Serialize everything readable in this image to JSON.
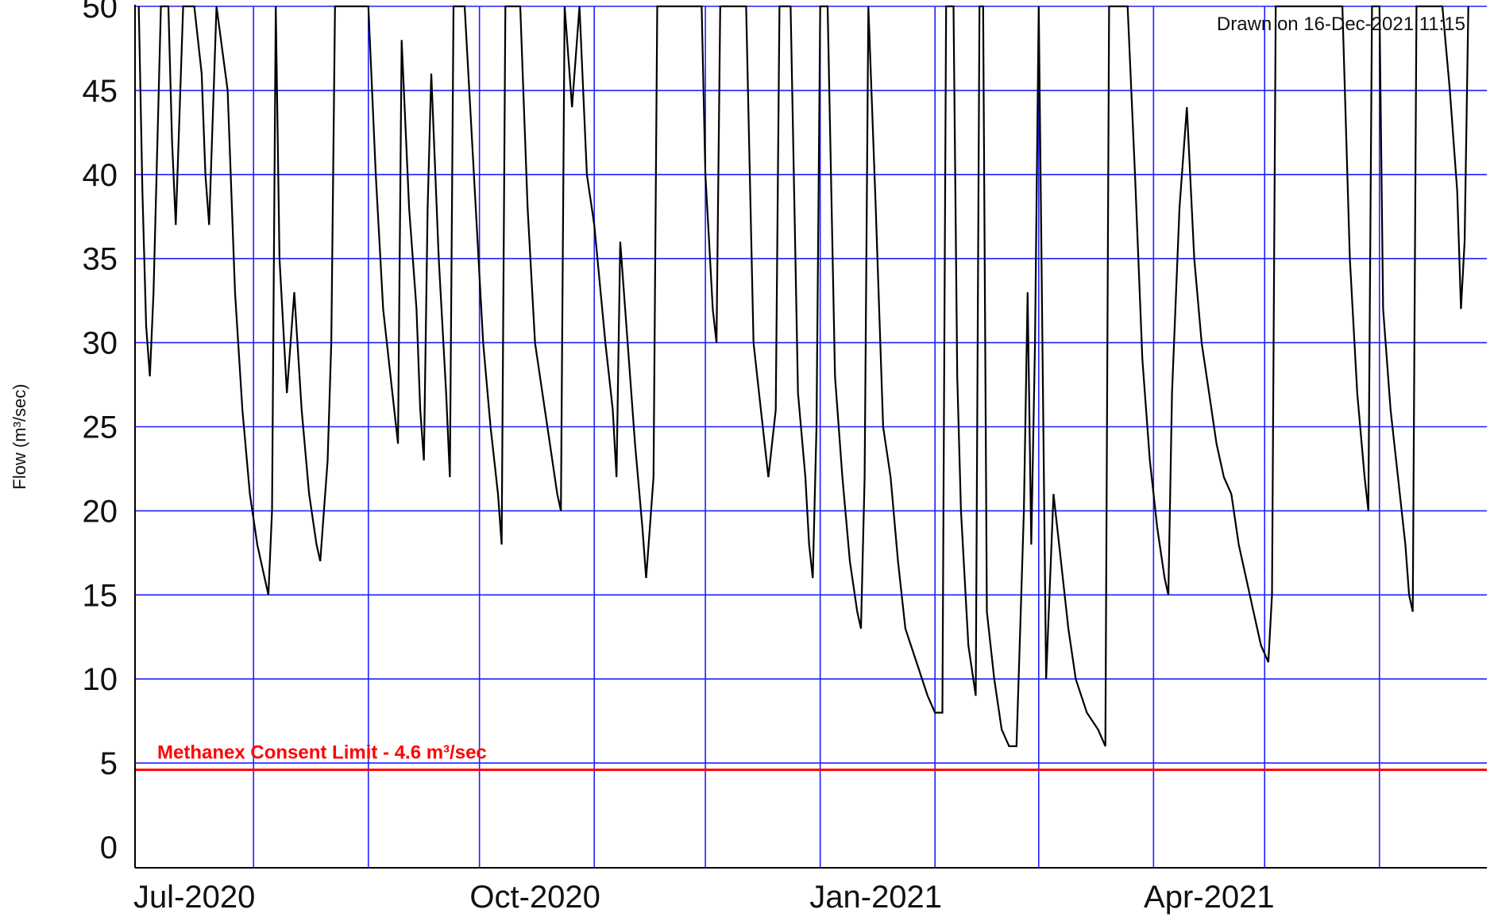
{
  "chart_data": {
    "type": "line",
    "ylabel": "Flow (m³/sec)",
    "xlabel": "",
    "ylim": [
      0,
      50
    ],
    "xlim": [
      "2020-06-30",
      "2021-06-30"
    ],
    "grid": true,
    "y_ticks": [
      "0",
      "5",
      "10",
      "15",
      "20",
      "25",
      "30",
      "35",
      "40",
      "45",
      "50"
    ],
    "x_tick_labels": [
      {
        "date": "2020-07-01",
        "label": "Jul-2020"
      },
      {
        "date": "2020-10-01",
        "label": "Oct-2020"
      },
      {
        "date": "2021-01-01",
        "label": "Jan-2021"
      },
      {
        "date": "2021-04-01",
        "label": "Apr-2021"
      }
    ],
    "month_gridlines": [
      "2020-08-01",
      "2020-09-01",
      "2020-10-01",
      "2020-11-01",
      "2020-12-01",
      "2021-01-01",
      "2021-02-01",
      "2021-03-01",
      "2021-04-01",
      "2021-05-01",
      "2021-06-01"
    ],
    "timestamp": "Drawn on 16-Dec-2021 11:15",
    "reference_line": {
      "value": 4.6,
      "label": "Methanex Consent Limit - 4.6 m³/sec",
      "color": "#ff0000"
    },
    "series_color": "#000000",
    "grid_color": "#1f1fff",
    "series": [
      {
        "points": [
          [
            "2020-07-01",
            50
          ],
          [
            "2020-07-02",
            39
          ],
          [
            "2020-07-03",
            31
          ],
          [
            "2020-07-04",
            28
          ],
          [
            "2020-07-05",
            33
          ],
          [
            "2020-07-07",
            50
          ],
          [
            "2020-07-09",
            50
          ],
          [
            "2020-07-10",
            42
          ],
          [
            "2020-07-11",
            37
          ],
          [
            "2020-07-13",
            50
          ],
          [
            "2020-07-16",
            50
          ],
          [
            "2020-07-18",
            46
          ],
          [
            "2020-07-19",
            40
          ],
          [
            "2020-07-20",
            37
          ],
          [
            "2020-07-22",
            50
          ],
          [
            "2020-07-25",
            45
          ],
          [
            "2020-07-27",
            33
          ],
          [
            "2020-07-29",
            26
          ],
          [
            "2020-07-31",
            21
          ],
          [
            "2020-08-02",
            18
          ],
          [
            "2020-08-04",
            16
          ],
          [
            "2020-08-05",
            15
          ],
          [
            "2020-08-06",
            20
          ],
          [
            "2020-08-07",
            50
          ],
          [
            "2020-08-08",
            35
          ],
          [
            "2020-08-10",
            27
          ],
          [
            "2020-08-12",
            33
          ],
          [
            "2020-08-14",
            26
          ],
          [
            "2020-08-16",
            21
          ],
          [
            "2020-08-18",
            18
          ],
          [
            "2020-08-19",
            17
          ],
          [
            "2020-08-21",
            23
          ],
          [
            "2020-08-22",
            30
          ],
          [
            "2020-08-23",
            50
          ],
          [
            "2020-08-31",
            50
          ],
          [
            "2020-09-01",
            50
          ],
          [
            "2020-09-03",
            40
          ],
          [
            "2020-09-05",
            32
          ],
          [
            "2020-09-07",
            28
          ],
          [
            "2020-09-09",
            24
          ],
          [
            "2020-09-10",
            48
          ],
          [
            "2020-09-12",
            38
          ],
          [
            "2020-09-14",
            32
          ],
          [
            "2020-09-15",
            26
          ],
          [
            "2020-09-16",
            23
          ],
          [
            "2020-09-17",
            38
          ],
          [
            "2020-09-18",
            46
          ],
          [
            "2020-09-20",
            35
          ],
          [
            "2020-09-22",
            27
          ],
          [
            "2020-09-23",
            22
          ],
          [
            "2020-09-24",
            50
          ],
          [
            "2020-09-27",
            50
          ],
          [
            "2020-09-30",
            38
          ],
          [
            "2020-10-02",
            30
          ],
          [
            "2020-10-04",
            25
          ],
          [
            "2020-10-06",
            21
          ],
          [
            "2020-10-07",
            18
          ],
          [
            "2020-10-08",
            50
          ],
          [
            "2020-10-12",
            50
          ],
          [
            "2020-10-14",
            38
          ],
          [
            "2020-10-16",
            30
          ],
          [
            "2020-10-18",
            27
          ],
          [
            "2020-10-20",
            24
          ],
          [
            "2020-10-22",
            21
          ],
          [
            "2020-10-23",
            20
          ],
          [
            "2020-10-24",
            50
          ],
          [
            "2020-10-26",
            44
          ],
          [
            "2020-10-28",
            50
          ],
          [
            "2020-10-30",
            40
          ],
          [
            "2020-11-01",
            37
          ],
          [
            "2020-11-04",
            30
          ],
          [
            "2020-11-06",
            26
          ],
          [
            "2020-11-07",
            22
          ],
          [
            "2020-11-08",
            36
          ],
          [
            "2020-11-10",
            30
          ],
          [
            "2020-11-12",
            24
          ],
          [
            "2020-11-14",
            19
          ],
          [
            "2020-11-15",
            16
          ],
          [
            "2020-11-16",
            19
          ],
          [
            "2020-11-17",
            22
          ],
          [
            "2020-11-18",
            50
          ],
          [
            "2020-11-30",
            50
          ],
          [
            "2020-12-01",
            40
          ],
          [
            "2020-12-02",
            36
          ],
          [
            "2020-12-03",
            32
          ],
          [
            "2020-12-04",
            30
          ],
          [
            "2020-12-05",
            50
          ],
          [
            "2020-12-12",
            50
          ],
          [
            "2020-12-14",
            30
          ],
          [
            "2020-12-16",
            26
          ],
          [
            "2020-12-18",
            22
          ],
          [
            "2020-12-20",
            26
          ],
          [
            "2020-12-21",
            50
          ],
          [
            "2020-12-24",
            50
          ],
          [
            "2020-12-26",
            27
          ],
          [
            "2020-12-28",
            22
          ],
          [
            "2020-12-29",
            18
          ],
          [
            "2020-12-30",
            16
          ],
          [
            "2020-12-31",
            25
          ],
          [
            "2021-01-01",
            50
          ],
          [
            "2021-01-03",
            50
          ],
          [
            "2021-01-05",
            28
          ],
          [
            "2021-01-07",
            22
          ],
          [
            "2021-01-09",
            17
          ],
          [
            "2021-01-11",
            14
          ],
          [
            "2021-01-12",
            13
          ],
          [
            "2021-01-13",
            22
          ],
          [
            "2021-01-14",
            50
          ],
          [
            "2021-01-16",
            38
          ],
          [
            "2021-01-18",
            25
          ],
          [
            "2021-01-20",
            22
          ],
          [
            "2021-01-22",
            17
          ],
          [
            "2021-01-24",
            13
          ],
          [
            "2021-01-27",
            11
          ],
          [
            "2021-01-30",
            9
          ],
          [
            "2021-02-01",
            8
          ],
          [
            "2021-02-03",
            8
          ],
          [
            "2021-02-04",
            50
          ],
          [
            "2021-02-06",
            50
          ],
          [
            "2021-02-07",
            28
          ],
          [
            "2021-02-08",
            20
          ],
          [
            "2021-02-10",
            12
          ],
          [
            "2021-02-12",
            9
          ],
          [
            "2021-02-13",
            50
          ],
          [
            "2021-02-14",
            50
          ],
          [
            "2021-02-15",
            14
          ],
          [
            "2021-02-17",
            10
          ],
          [
            "2021-02-19",
            7
          ],
          [
            "2021-02-21",
            6
          ],
          [
            "2021-02-23",
            6
          ],
          [
            "2021-02-24",
            13
          ],
          [
            "2021-02-25",
            20
          ],
          [
            "2021-02-26",
            33
          ],
          [
            "2021-02-27",
            18
          ],
          [
            "2021-02-28",
            30
          ],
          [
            "2021-03-01",
            50
          ],
          [
            "2021-03-03",
            10
          ],
          [
            "2021-03-05",
            21
          ],
          [
            "2021-03-07",
            17
          ],
          [
            "2021-03-09",
            13
          ],
          [
            "2021-03-11",
            10
          ],
          [
            "2021-03-14",
            8
          ],
          [
            "2021-03-17",
            7
          ],
          [
            "2021-03-19",
            6
          ],
          [
            "2021-03-20",
            50
          ],
          [
            "2021-03-25",
            50
          ],
          [
            "2021-03-27",
            40
          ],
          [
            "2021-03-29",
            29
          ],
          [
            "2021-03-31",
            23
          ],
          [
            "2021-04-02",
            19
          ],
          [
            "2021-04-04",
            16
          ],
          [
            "2021-04-05",
            15
          ],
          [
            "2021-04-06",
            27
          ],
          [
            "2021-04-08",
            38
          ],
          [
            "2021-04-10",
            44
          ],
          [
            "2021-04-12",
            35
          ],
          [
            "2021-04-14",
            30
          ],
          [
            "2021-04-16",
            27
          ],
          [
            "2021-04-18",
            24
          ],
          [
            "2021-04-20",
            22
          ],
          [
            "2021-04-22",
            21
          ],
          [
            "2021-04-24",
            18
          ],
          [
            "2021-04-26",
            16
          ],
          [
            "2021-04-28",
            14
          ],
          [
            "2021-04-30",
            12
          ],
          [
            "2021-05-02",
            11
          ],
          [
            "2021-05-03",
            15
          ],
          [
            "2021-05-04",
            50
          ],
          [
            "2021-05-22",
            50
          ],
          [
            "2021-05-24",
            35
          ],
          [
            "2021-05-26",
            27
          ],
          [
            "2021-05-28",
            22
          ],
          [
            "2021-05-29",
            20
          ],
          [
            "2021-05-30",
            50
          ],
          [
            "2021-06-01",
            50
          ],
          [
            "2021-06-02",
            32
          ],
          [
            "2021-06-04",
            26
          ],
          [
            "2021-06-06",
            22
          ],
          [
            "2021-06-08",
            18
          ],
          [
            "2021-06-09",
            15
          ],
          [
            "2021-06-10",
            14
          ],
          [
            "2021-06-11",
            50
          ],
          [
            "2021-06-18",
            50
          ],
          [
            "2021-06-20",
            45
          ],
          [
            "2021-06-22",
            39
          ],
          [
            "2021-06-23",
            32
          ],
          [
            "2021-06-24",
            36
          ],
          [
            "2021-06-25",
            50
          ]
        ]
      }
    ]
  }
}
